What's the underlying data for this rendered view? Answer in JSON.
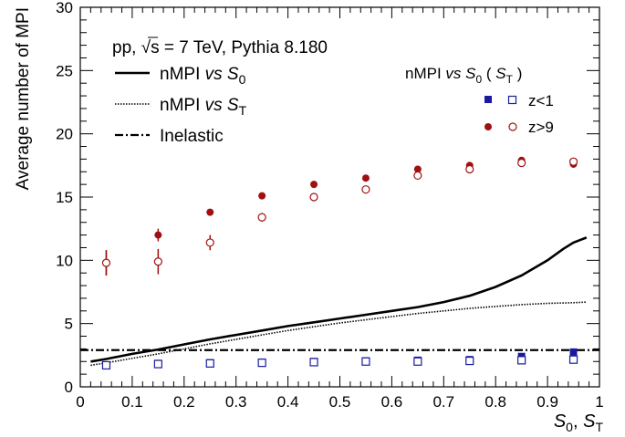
{
  "chart_data": {
    "type": "scatter",
    "xlabel_main": "S",
    "xlabel_sub1": "0",
    "xlabel_sep": ", ",
    "xlabel_sub2": "T",
    "ylabel": "Average number of MPI",
    "xlim": [
      0,
      1
    ],
    "ylim": [
      0,
      30
    ],
    "xticks": [
      "0",
      "0.1",
      "0.2",
      "0.3",
      "0.4",
      "0.5",
      "0.6",
      "0.7",
      "0.8",
      "0.9",
      "1"
    ],
    "yticks": [
      "0",
      "5",
      "10",
      "15",
      "20",
      "25",
      "30"
    ],
    "header": {
      "prefix": "pp, ",
      "sqrt": "√s",
      "rest": " = 7 TeV, Pythia 8.180"
    },
    "legend_lines": [
      {
        "pre": "nMPI ",
        "vs": "vs",
        "var": "S",
        "sub": "0",
        "style": "solid"
      },
      {
        "pre": "nMPI ",
        "vs": "vs",
        "var": "S",
        "sub": "T",
        "style": "dotted"
      },
      {
        "label": "Inelastic",
        "style": "dashdot"
      }
    ],
    "legend_markers_header": {
      "pre": "nMPI ",
      "vs": "vs",
      "var": "S",
      "sub": "0",
      "open": " ( ",
      "var2": "S",
      "sub2": "T",
      "close": " )"
    },
    "legend_markers": [
      {
        "label": "z<1",
        "color": "#1a1aa0",
        "shape": "square"
      },
      {
        "label": "z>9",
        "color": "#a01010",
        "shape": "circle"
      }
    ],
    "lines": {
      "nmpi_vs_s0": {
        "x": [
          0.02,
          0.05,
          0.1,
          0.15,
          0.2,
          0.25,
          0.3,
          0.35,
          0.4,
          0.45,
          0.5,
          0.55,
          0.6,
          0.65,
          0.7,
          0.75,
          0.8,
          0.85,
          0.9,
          0.93,
          0.95,
          0.975
        ],
        "y": [
          2.0,
          2.2,
          2.6,
          2.95,
          3.35,
          3.75,
          4.1,
          4.45,
          4.8,
          5.1,
          5.4,
          5.7,
          6.0,
          6.3,
          6.7,
          7.2,
          7.9,
          8.8,
          10.0,
          10.9,
          11.4,
          11.8
        ]
      },
      "nmpi_vs_st": {
        "x": [
          0.02,
          0.05,
          0.1,
          0.15,
          0.2,
          0.25,
          0.3,
          0.35,
          0.4,
          0.45,
          0.5,
          0.55,
          0.6,
          0.65,
          0.7,
          0.75,
          0.8,
          0.85,
          0.9,
          0.95,
          0.975
        ],
        "y": [
          1.7,
          1.9,
          2.25,
          2.6,
          3.0,
          3.4,
          3.75,
          4.1,
          4.45,
          4.75,
          5.05,
          5.3,
          5.55,
          5.8,
          6.0,
          6.2,
          6.35,
          6.5,
          6.6,
          6.65,
          6.7
        ]
      },
      "inelastic": {
        "y": 2.9
      }
    },
    "series": [
      {
        "key": "z_lt_1_s0",
        "color": "#1a1aa0",
        "shape": "square",
        "filled": true,
        "x": [
          0.05,
          0.15,
          0.25,
          0.35,
          0.45,
          0.55,
          0.65,
          0.75,
          0.85,
          0.95
        ],
        "y": [
          1.7,
          1.85,
          1.9,
          1.95,
          2.0,
          2.05,
          2.1,
          2.15,
          2.4,
          2.75
        ],
        "err": [
          0.1,
          0.1,
          0.1,
          0.05,
          0.05,
          0.05,
          0.05,
          0.05,
          0.05,
          0.05
        ]
      },
      {
        "key": "z_lt_1_st",
        "color": "#1a1aa0",
        "shape": "square",
        "filled": false,
        "x": [
          0.05,
          0.15,
          0.25,
          0.35,
          0.45,
          0.55,
          0.65,
          0.75,
          0.85,
          0.95
        ],
        "y": [
          1.7,
          1.8,
          1.85,
          1.9,
          1.95,
          2.0,
          2.0,
          2.05,
          2.1,
          2.15
        ],
        "err": [
          0.1,
          0.1,
          0.1,
          0.05,
          0.05,
          0.05,
          0.05,
          0.05,
          0.05,
          0.05
        ]
      },
      {
        "key": "z_gt_9_s0",
        "color": "#a01010",
        "shape": "circle",
        "filled": true,
        "x": [
          0.05,
          0.15,
          0.25,
          0.35,
          0.45,
          0.55,
          0.65,
          0.75,
          0.85,
          0.95
        ],
        "y": [
          9.8,
          12.0,
          13.8,
          15.1,
          16.0,
          16.5,
          17.2,
          17.5,
          17.9,
          17.6
        ],
        "err": [
          1.0,
          0.5,
          0.25,
          0.2,
          0.15,
          0.1,
          0.1,
          0.1,
          0.1,
          0.1
        ]
      },
      {
        "key": "z_gt_9_st",
        "color": "#a01010",
        "shape": "circle",
        "filled": false,
        "x": [
          0.05,
          0.15,
          0.25,
          0.35,
          0.45,
          0.55,
          0.65,
          0.75,
          0.85,
          0.95
        ],
        "y": [
          9.8,
          9.9,
          11.4,
          13.4,
          15.0,
          15.6,
          16.7,
          17.2,
          17.7,
          17.8
        ],
        "err": [
          1.0,
          1.0,
          0.6,
          0.35,
          0.2,
          0.15,
          0.15,
          0.1,
          0.1,
          0.1
        ]
      }
    ]
  }
}
